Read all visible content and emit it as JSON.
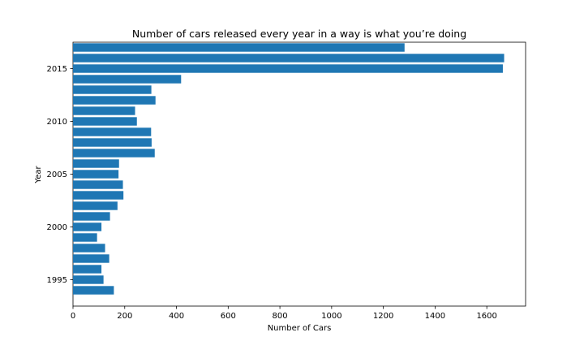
{
  "chart_data": {
    "type": "bar",
    "orientation": "horizontal",
    "title": "Number of cars released every year in a way is what you’re doing",
    "xlabel": "Number of Cars",
    "ylabel": "Year",
    "xlim": [
      0,
      1750
    ],
    "ylim": [
      1992.5,
      2017.5
    ],
    "xticks": [
      0,
      200,
      400,
      600,
      800,
      1000,
      1200,
      1400,
      1600
    ],
    "yticks": [
      1995,
      2000,
      2005,
      2010,
      2015
    ],
    "grid": false,
    "bar_color": "#1f77b4",
    "categories": [
      1994,
      1995,
      1996,
      1997,
      1998,
      1999,
      2000,
      2001,
      2002,
      2003,
      2004,
      2005,
      2006,
      2007,
      2008,
      2009,
      2010,
      2011,
      2012,
      2013,
      2014,
      2015,
      2016,
      2017
    ],
    "values": [
      158,
      118,
      110,
      140,
      124,
      93,
      110,
      143,
      172,
      195,
      193,
      176,
      178,
      316,
      304,
      302,
      247,
      240,
      319,
      303,
      418,
      1662,
      1667,
      1282
    ]
  }
}
